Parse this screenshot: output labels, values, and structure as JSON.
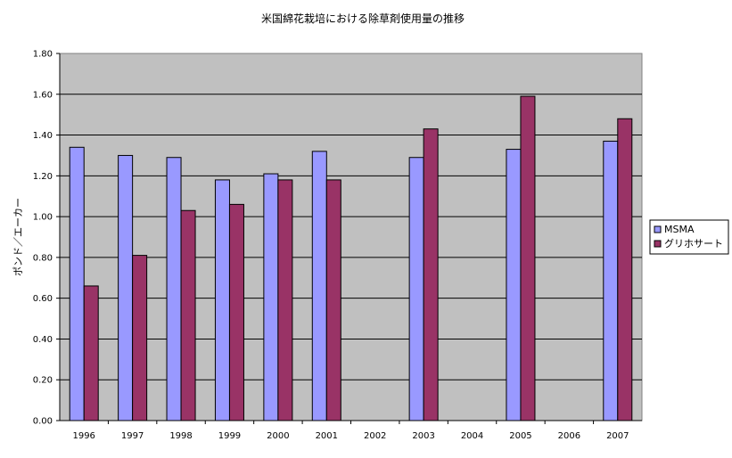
{
  "chart_data": {
    "type": "bar",
    "title": "米国綿花栽培における除草剤使用量の推移",
    "xlabel": "",
    "ylabel": "ポンド／エーカー",
    "categories": [
      "1996",
      "1997",
      "1998",
      "1999",
      "2000",
      "2001",
      "2002",
      "2003",
      "2004",
      "2005",
      "2006",
      "2007"
    ],
    "series": [
      {
        "name": "MSMA",
        "color": "#9999ff",
        "values": [
          1.34,
          1.3,
          1.29,
          1.18,
          1.21,
          1.32,
          null,
          1.29,
          null,
          1.33,
          null,
          1.37
        ]
      },
      {
        "name": "グリホサート",
        "color": "#993366",
        "values": [
          0.66,
          0.81,
          1.03,
          1.06,
          1.18,
          1.18,
          null,
          1.43,
          null,
          1.59,
          null,
          1.48
        ]
      }
    ],
    "ylim": [
      0,
      1.8
    ],
    "yticks": [
      "0.00",
      "0.20",
      "0.40",
      "0.60",
      "0.80",
      "1.00",
      "1.20",
      "1.40",
      "1.60",
      "1.80"
    ],
    "grid": true,
    "plot_background": "#c0c0c0",
    "legend_position": "right"
  }
}
